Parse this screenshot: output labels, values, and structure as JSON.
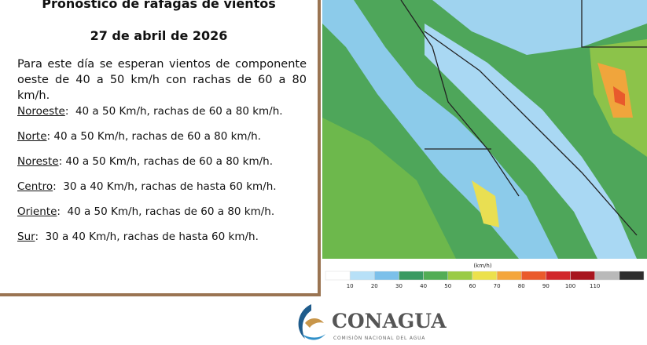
{
  "header": {
    "title": "Pronóstico de ráfagas de vientos",
    "date": "27 de abril de 2026"
  },
  "summary": "Para este día se esperan vientos de componente oeste de 40 a 50 km/h con rachas de 60 a 80 km/h.",
  "regions": [
    {
      "name": "Noroeste",
      "detail": ":  40 a 50 Km/h, rachas de 60 a 80 km/h."
    },
    {
      "name": "Norte",
      "detail": ": 40 a 50 Km/h, rachas de 60 a 80 km/h."
    },
    {
      "name": "Noreste",
      "detail": ": 40 a 50 Km/h, rachas de 60 a 80 km/h."
    },
    {
      "name": "Centro",
      "detail": ":  30 a 40 Km/h, rachas de hasta 60 km/h."
    },
    {
      "name": "Oriente",
      "detail": ":  40 a 50 Km/h, rachas de 60 a 80 km/h."
    },
    {
      "name": "Sur",
      "detail": ":  30 a 40 Km/h, rachas de hasta 60 km/h."
    }
  ],
  "legend": {
    "unit": "(km/h)",
    "ticks": [
      10,
      20,
      30,
      40,
      50,
      60,
      70,
      80,
      90,
      100,
      110
    ],
    "colors": [
      "#ffffff",
      "#b7e0f7",
      "#7cc0ea",
      "#3a9a62",
      "#52ad55",
      "#9acb45",
      "#ece14c",
      "#f4a63c",
      "#ea5a2b",
      "#d1262a",
      "#a8151e",
      "#b9b9b9",
      "#2e2e2e"
    ]
  },
  "logo": {
    "name": "CONAGUA",
    "subtitle": "COMISIÓN NACIONAL DEL AGUA"
  }
}
